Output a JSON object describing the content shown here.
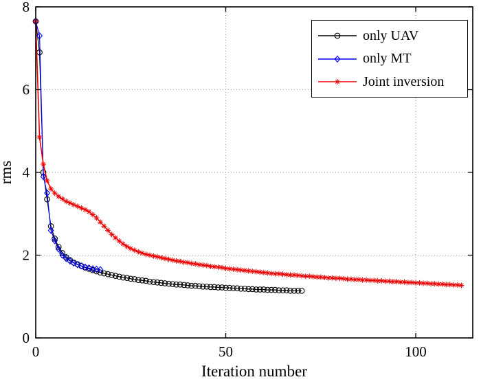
{
  "chart_data": {
    "type": "line",
    "title": "",
    "xlabel": "Iteration number",
    "ylabel": "rms",
    "xlim": [
      0,
      115
    ],
    "ylim": [
      0,
      8
    ],
    "xticks": [
      0,
      50,
      100
    ],
    "yticks": [
      0,
      2,
      4,
      6,
      8
    ],
    "grid": true,
    "legend_position": "top-right",
    "series": [
      {
        "name": "only UAV",
        "color": "#000000",
        "marker": "circle",
        "line_width": 1.2,
        "x": "iteration index starting at 0",
        "values": [
          7.65,
          6.9,
          4.0,
          3.35,
          2.7,
          2.4,
          2.2,
          2.05,
          1.95,
          1.88,
          1.82,
          1.78,
          1.74,
          1.7,
          1.67,
          1.64,
          1.61,
          1.58,
          1.56,
          1.54,
          1.52,
          1.5,
          1.48,
          1.46,
          1.45,
          1.43,
          1.42,
          1.4,
          1.39,
          1.38,
          1.36,
          1.35,
          1.34,
          1.33,
          1.32,
          1.31,
          1.3,
          1.29,
          1.29,
          1.28,
          1.27,
          1.26,
          1.26,
          1.25,
          1.24,
          1.24,
          1.23,
          1.23,
          1.22,
          1.22,
          1.21,
          1.21,
          1.2,
          1.2,
          1.19,
          1.19,
          1.18,
          1.18,
          1.17,
          1.17,
          1.17,
          1.16,
          1.16,
          1.16,
          1.15,
          1.15,
          1.15,
          1.14,
          1.14,
          1.14,
          1.14
        ]
      },
      {
        "name": "only MT",
        "color": "#0000ee",
        "marker": "diamond",
        "line_width": 1.2,
        "x": "iteration index starting at 0",
        "values": [
          7.65,
          7.3,
          3.9,
          3.5,
          2.6,
          2.35,
          2.15,
          2.0,
          1.92,
          1.86,
          1.81,
          1.77,
          1.74,
          1.71,
          1.69,
          1.67,
          1.66,
          1.65
        ]
      },
      {
        "name": "Joint inversion",
        "color": "#ee0000",
        "marker": "asterisk",
        "line_width": 1.6,
        "x": "iteration index starting at 0",
        "values": [
          7.65,
          4.85,
          4.2,
          3.8,
          3.6,
          3.5,
          3.42,
          3.36,
          3.3,
          3.26,
          3.22,
          3.18,
          3.14,
          3.1,
          3.05,
          2.98,
          2.9,
          2.8,
          2.7,
          2.6,
          2.5,
          2.42,
          2.34,
          2.27,
          2.21,
          2.16,
          2.12,
          2.08,
          2.05,
          2.02,
          2.0,
          1.98,
          1.96,
          1.94,
          1.92,
          1.9,
          1.88,
          1.86,
          1.85,
          1.83,
          1.82,
          1.8,
          1.79,
          1.77,
          1.76,
          1.75,
          1.73,
          1.72,
          1.71,
          1.7,
          1.68,
          1.67,
          1.66,
          1.65,
          1.64,
          1.63,
          1.62,
          1.61,
          1.6,
          1.59,
          1.58,
          1.57,
          1.56,
          1.55,
          1.55,
          1.54,
          1.53,
          1.52,
          1.52,
          1.51,
          1.5,
          1.49,
          1.49,
          1.48,
          1.47,
          1.47,
          1.46,
          1.45,
          1.45,
          1.44,
          1.44,
          1.43,
          1.42,
          1.42,
          1.41,
          1.41,
          1.4,
          1.4,
          1.39,
          1.39,
          1.38,
          1.38,
          1.37,
          1.37,
          1.36,
          1.36,
          1.35,
          1.35,
          1.34,
          1.34,
          1.33,
          1.33,
          1.32,
          1.32,
          1.31,
          1.31,
          1.3,
          1.3,
          1.29,
          1.29,
          1.28,
          1.28,
          1.27
        ]
      }
    ]
  }
}
